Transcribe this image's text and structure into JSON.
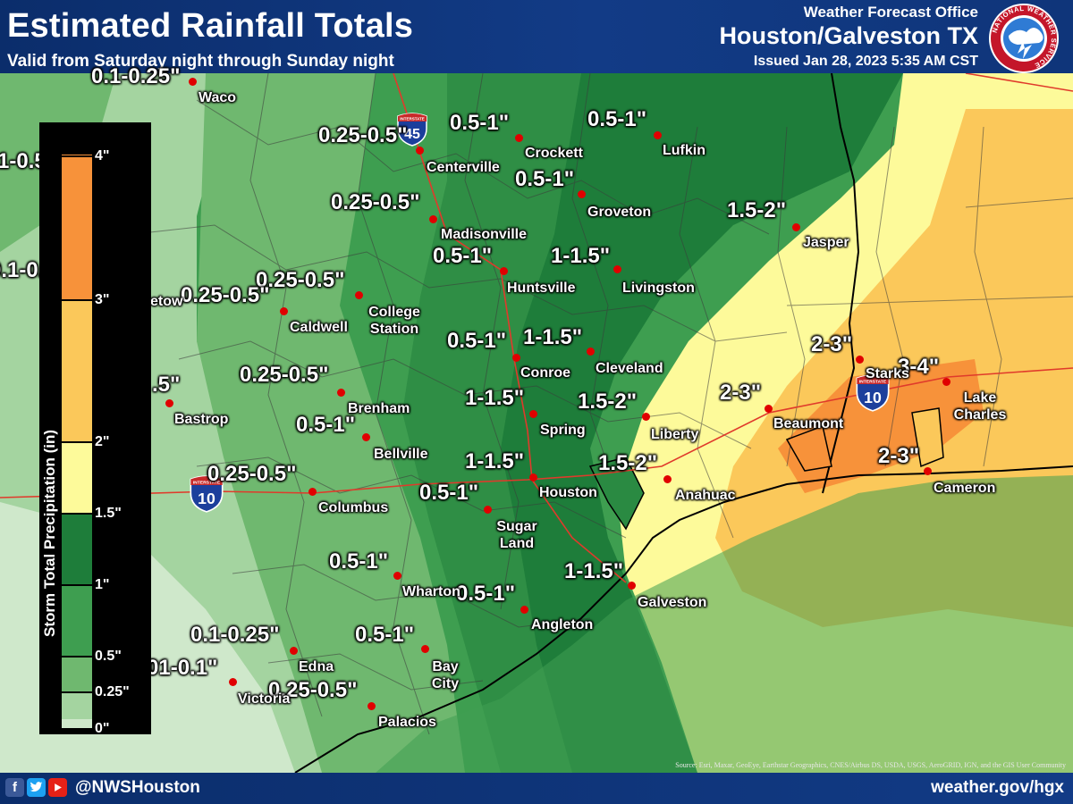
{
  "header": {
    "title": "Estimated Rainfall Totals",
    "subtitle": "Valid from Saturday night through Sunday night",
    "office": "Weather Forecast Office",
    "city": "Houston/Galveston TX",
    "issued": "Issued Jan 28, 2023 5:35 AM CST",
    "logo_text": "NATIONAL WEATHER SERVICE"
  },
  "legend": {
    "title": "Storm Total Precipitation (in)",
    "ticks": [
      "4\"",
      "3\"",
      "2\"",
      "1.5\"",
      "1\"",
      "0.5\"",
      "0.25\"",
      "0\""
    ],
    "colors": [
      "#f7923a",
      "#fbc85a",
      "#fdfa9a",
      "#1e7d3a",
      "#3e9e50",
      "#6fb86f",
      "#a4d4a0",
      "#cfe8cb"
    ]
  },
  "interstates": [
    {
      "number": "45",
      "shield_text": "INTERSTATE"
    },
    {
      "number": "10",
      "shield_text": "INTERSTATE"
    },
    {
      "number": "10",
      "shield_text": "INTERSTATE"
    }
  ],
  "ranges": [
    "0.1-0.25\"",
    "1-0.5\"",
    "0.25-0.5\"",
    "0.5-1\"",
    "0.5-1\"",
    "0.5-1\"",
    "0.25-0.5\"",
    "1.5-2\"",
    "0.5-1\"",
    "1-1.5\"",
    "0.1-0.25\"",
    "0.25-0.5\"",
    "0.25-0.5\"",
    "0.5-1\"",
    "1-1.5\"",
    "2-3\"",
    "3-4\"",
    ".5\"",
    "0.25-0.5\"",
    "1-1.5\"",
    "1.5-2\"",
    "2-3\"",
    "0.5-1\"",
    "2-3\"",
    "0.25-0.5\"",
    "1-1.5\"",
    "1.5-2\"",
    "0.5-1\"",
    "0.5-1\"",
    "1-1.5\"",
    "0.5-1\"",
    "0.1-0.25\"",
    "0.5-1\"",
    "01-0.1\"",
    "0.25-0.5\""
  ],
  "cities": [
    "Waco",
    "Crockett",
    "Lufkin",
    "Centerville",
    "Groveton",
    "Madisonville",
    "Jasper",
    "Huntsville",
    "Livingston",
    "College Station",
    "Caldwell",
    "Conroe",
    "Cleveland",
    "Starks",
    "Lake Charles",
    "Brenham",
    "Beaumont",
    "Spring",
    "Liberty",
    "Bastrop",
    "Bellville",
    "Houston",
    "Anahuac",
    "Columbus",
    "Sugar Land",
    "Cameron",
    "Wharton",
    "Galveston",
    "Angleton",
    "Edna",
    "Bay City",
    "Victoria",
    "Palacios",
    "etow"
  ],
  "footer": {
    "handle": "@NWSHouston",
    "website": "weather.gov/hgx",
    "credit": "Source: Esri, Maxar, GeoEye, Earthstar Geographics, CNES/Airbus DS, USDA, USGS, AeroGRID, IGN, and the GIS User Community",
    "social_icons": [
      "facebook-icon",
      "twitter-icon",
      "youtube-icon"
    ]
  }
}
